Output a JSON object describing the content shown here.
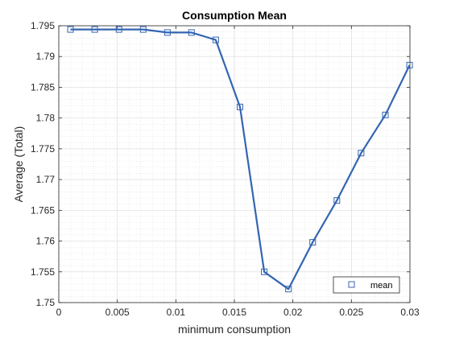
{
  "chart_data": {
    "type": "line",
    "title": "Consumption Mean",
    "xlabel": "minimum consumption",
    "ylabel": "Average (Total)",
    "xlim": [
      0,
      0.03
    ],
    "ylim": [
      1.75,
      1.795
    ],
    "x_ticks": [
      "0",
      "0.005",
      "0.01",
      "0.015",
      "0.02",
      "0.025",
      "0.03"
    ],
    "x_tick_values": [
      0,
      0.005,
      0.01,
      0.015,
      0.02,
      0.025,
      0.03
    ],
    "y_ticks": [
      "1.75",
      "1.755",
      "1.76",
      "1.765",
      "1.77",
      "1.775",
      "1.78",
      "1.785",
      "1.79",
      "1.795"
    ],
    "y_tick_values": [
      1.75,
      1.755,
      1.76,
      1.765,
      1.77,
      1.775,
      1.78,
      1.785,
      1.79,
      1.795
    ],
    "grid": "on",
    "minor_grid": "on",
    "legend_position": "bottom-right",
    "series": [
      {
        "name": "mean",
        "color": "#3465b1",
        "marker": "square",
        "x": [
          0.001,
          0.00307,
          0.00514,
          0.00721,
          0.00928,
          0.01134,
          0.01341,
          0.01548,
          0.01755,
          0.01962,
          0.02169,
          0.02376,
          0.02583,
          0.0279,
          0.02997
        ],
        "values": [
          1.7944,
          1.7944,
          1.7944,
          1.7944,
          1.7939,
          1.7939,
          1.7927,
          1.7818,
          1.755,
          1.7522,
          1.7598,
          1.7666,
          1.7743,
          1.7805,
          1.7886
        ]
      }
    ]
  }
}
